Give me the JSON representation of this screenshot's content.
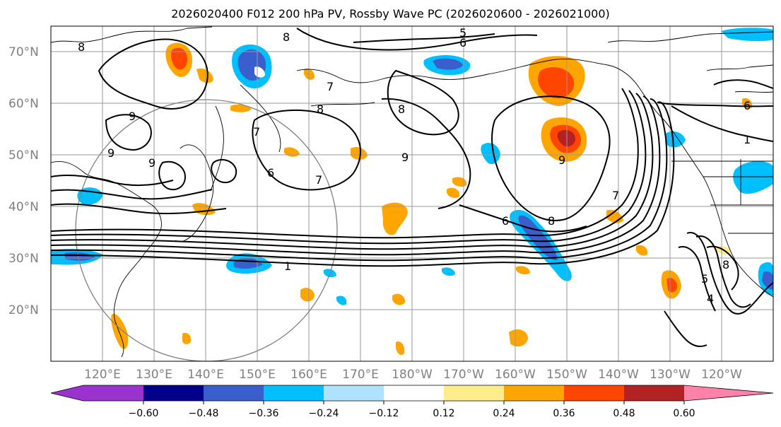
{
  "title": "2026020400 F012 200 hPa PV, Rossby Wave PC (2026020600 - 2026021000)",
  "lat_labels": [
    "70°N",
    "60°N",
    "50°N",
    "40°N",
    "30°N",
    "20°N"
  ],
  "lon_labels": [
    "120°E",
    "130°E",
    "140°E",
    "150°E",
    "160°E",
    "170°E",
    "180°W",
    "170°W",
    "160°W",
    "150°W",
    "140°W",
    "130°W",
    "120°W"
  ],
  "contour_labels": [
    "8",
    "5",
    "6",
    "8",
    "7",
    "8",
    "9",
    "9",
    "9",
    "8",
    "6",
    "7",
    "7",
    "6",
    "9",
    "9",
    "8",
    "7",
    "8",
    "1",
    "6",
    "1",
    "5",
    "4"
  ],
  "colorbar": {
    "labels": [
      "−0.60",
      "−0.48",
      "−0.36",
      "−0.24",
      "−0.12",
      "0.12",
      "0.24",
      "0.36",
      "0.48",
      "0.60"
    ],
    "colors": [
      "#9a32cd",
      "#00008b",
      "#3a5fcd",
      "#00bfff",
      "#b0e2ff",
      "#ffffff",
      "#ffec8b",
      "#ffa500",
      "#ff4500",
      "#b22222",
      "#ff82ab"
    ]
  },
  "palette": {
    "coast": "#000000",
    "contour": "#000000",
    "grid": "#999999",
    "circle": "#808080"
  }
}
